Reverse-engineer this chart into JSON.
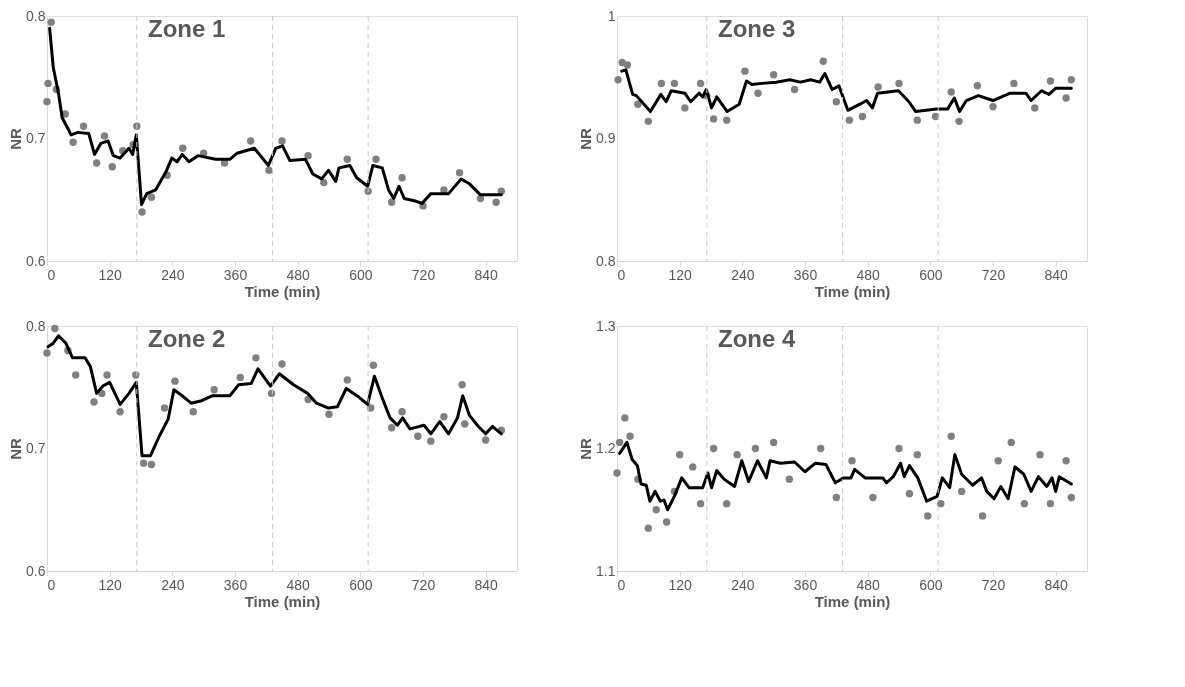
{
  "chart_data": [
    {
      "type": "line",
      "title": "Zone 1",
      "xlabel": "Time (min)",
      "ylabel": "NR",
      "xlim": [
        0,
        900
      ],
      "xticks": [
        0,
        120,
        240,
        360,
        480,
        600,
        720,
        840
      ],
      "ylim": [
        0.6,
        0.8
      ],
      "yticks": [
        0.6,
        0.7,
        0.8
      ],
      "grid": false,
      "ref_lines": [
        {
          "axis": "x",
          "value": 172,
          "color": "#c8c8c8",
          "line_style": "dashed"
        },
        {
          "axis": "x",
          "value": 432,
          "color": "#c8c8c8",
          "line_style": "dashed"
        },
        {
          "axis": "x",
          "value": 615,
          "color": "#c8c8c8",
          "line_style": "dashed"
        }
      ],
      "series": [
        {
          "type": "scatter",
          "color": "#808080",
          "x": [
            0,
            2,
            8,
            18,
            35,
            50,
            70,
            95,
            110,
            125,
            145,
            165,
            172,
            182,
            200,
            230,
            260,
            300,
            340,
            390,
            425,
            450,
            500,
            530,
            575,
            615,
            630,
            660,
            680,
            720,
            760,
            790,
            830,
            860,
            870
          ],
          "values": [
            0.73,
            0.745,
            0.795,
            0.74,
            0.72,
            0.697,
            0.71,
            0.68,
            0.702,
            0.677,
            0.69,
            0.695,
            0.71,
            0.64,
            0.652,
            0.67,
            0.692,
            0.688,
            0.68,
            0.698,
            0.674,
            0.698,
            0.686,
            0.664,
            0.683,
            0.657,
            0.683,
            0.648,
            0.668,
            0.645,
            0.658,
            0.672,
            0.651,
            0.648,
            0.657
          ]
        },
        {
          "color": "#000000",
          "x": [
            5,
            12,
            22,
            29,
            39,
            46,
            59,
            80,
            91,
            103,
            117,
            127,
            140,
            157,
            164,
            171,
            181,
            191,
            208,
            228,
            239,
            249,
            259,
            272,
            289,
            323,
            350,
            364,
            397,
            424,
            438,
            451,
            465,
            495,
            509,
            526,
            539,
            553,
            559,
            580,
            593,
            614,
            624,
            642,
            654,
            664,
            674,
            684,
            705,
            718,
            735,
            769,
            793,
            809,
            830,
            870
          ],
          "values": [
            0.79,
            0.758,
            0.737,
            0.717,
            0.709,
            0.703,
            0.705,
            0.704,
            0.687,
            0.696,
            0.698,
            0.686,
            0.684,
            0.692,
            0.687,
            0.703,
            0.646,
            0.655,
            0.658,
            0.673,
            0.684,
            0.681,
            0.687,
            0.681,
            0.686,
            0.683,
            0.683,
            0.688,
            0.692,
            0.678,
            0.692,
            0.694,
            0.682,
            0.683,
            0.671,
            0.667,
            0.674,
            0.665,
            0.676,
            0.678,
            0.668,
            0.661,
            0.678,
            0.676,
            0.658,
            0.651,
            0.661,
            0.651,
            0.649,
            0.647,
            0.655,
            0.655,
            0.667,
            0.663,
            0.654,
            0.654
          ]
        }
      ]
    },
    {
      "type": "line",
      "title": "Zone 3",
      "xlabel": "Time (min)",
      "ylabel": "NR",
      "xlim": [
        0,
        900
      ],
      "xticks": [
        0,
        120,
        240,
        360,
        480,
        600,
        720,
        840
      ],
      "ylim": [
        0.8,
        1
      ],
      "yticks": [
        0.8,
        0.9,
        1
      ],
      "grid": false,
      "ref_lines": [
        {
          "axis": "x",
          "value": 172,
          "color": "#c8c8c8",
          "line_style": "dashed"
        },
        {
          "axis": "x",
          "value": 432,
          "color": "#c8c8c8",
          "line_style": "dashed"
        },
        {
          "axis": "x",
          "value": 615,
          "color": "#c8c8c8",
          "line_style": "dashed"
        }
      ],
      "series": [
        {
          "type": "scatter",
          "color": "#808080",
          "x": [
            2,
            10,
            20,
            40,
            60,
            85,
            110,
            130,
            160,
            172,
            185,
            210,
            245,
            270,
            300,
            340,
            395,
            420,
            445,
            470,
            500,
            540,
            575,
            610,
            640,
            655,
            690,
            720,
            760,
            800,
            830,
            860,
            870
          ],
          "values": [
            0.948,
            0.962,
            0.96,
            0.928,
            0.914,
            0.945,
            0.945,
            0.925,
            0.945,
            0.935,
            0.916,
            0.915,
            0.955,
            0.937,
            0.952,
            0.94,
            0.963,
            0.93,
            0.915,
            0.918,
            0.942,
            0.945,
            0.915,
            0.918,
            0.938,
            0.914,
            0.943,
            0.926,
            0.945,
            0.925,
            0.947,
            0.933,
            0.948
          ]
        },
        {
          "color": "#000000",
          "x": [
            9,
            17,
            30,
            37,
            64,
            84,
            94,
            104,
            130,
            141,
            157,
            164,
            171,
            181,
            191,
            211,
            234,
            248,
            258,
            278,
            305,
            331,
            351,
            371,
            388,
            398,
            412,
            425,
            442,
            465,
            478,
            489,
            499,
            539,
            559,
            572,
            612,
            633,
            646,
            656,
            669,
            692,
            720,
            753,
            783,
            793,
            813,
            827,
            840,
            870
          ],
          "values": [
            0.955,
            0.956,
            0.936,
            0.935,
            0.922,
            0.936,
            0.93,
            0.939,
            0.937,
            0.93,
            0.937,
            0.934,
            0.94,
            0.925,
            0.934,
            0.922,
            0.928,
            0.947,
            0.944,
            0.945,
            0.946,
            0.948,
            0.946,
            0.948,
            0.946,
            0.953,
            0.94,
            0.943,
            0.923,
            0.928,
            0.931,
            0.925,
            0.937,
            0.939,
            0.93,
            0.922,
            0.924,
            0.924,
            0.933,
            0.922,
            0.931,
            0.935,
            0.931,
            0.937,
            0.937,
            0.931,
            0.939,
            0.936,
            0.941,
            0.941
          ]
        }
      ]
    },
    {
      "type": "line",
      "title": "Zone 2",
      "xlabel": "Time (min)",
      "ylabel": "NR",
      "xlim": [
        0,
        900
      ],
      "xticks": [
        0,
        120,
        240,
        360,
        480,
        600,
        720,
        840
      ],
      "ylim": [
        0.6,
        0.8
      ],
      "yticks": [
        0.6,
        0.7,
        0.8
      ],
      "grid": false,
      "ref_lines": [
        {
          "axis": "x",
          "value": 172,
          "color": "#c8c8c8",
          "line_style": "dashed"
        },
        {
          "axis": "x",
          "value": 432,
          "color": "#c8c8c8",
          "line_style": "dashed"
        },
        {
          "axis": "x",
          "value": 615,
          "color": "#c8c8c8",
          "line_style": "dashed"
        }
      ],
      "series": [
        {
          "type": "scatter",
          "color": "#808080",
          "x": [
            0,
            15,
            40,
            55,
            90,
            105,
            115,
            140,
            170,
            185,
            200,
            225,
            245,
            280,
            320,
            370,
            400,
            430,
            450,
            500,
            540,
            575,
            620,
            625,
            660,
            680,
            710,
            735,
            760,
            795,
            800,
            840,
            870
          ],
          "values": [
            0.778,
            0.798,
            0.78,
            0.76,
            0.738,
            0.745,
            0.76,
            0.73,
            0.76,
            0.688,
            0.687,
            0.733,
            0.755,
            0.73,
            0.748,
            0.758,
            0.774,
            0.745,
            0.769,
            0.74,
            0.728,
            0.756,
            0.733,
            0.768,
            0.717,
            0.73,
            0.71,
            0.706,
            0.726,
            0.752,
            0.72,
            0.707,
            0.715
          ]
        },
        {
          "color": "#000000",
          "x": [
            2,
            12,
            22,
            36,
            49,
            73,
            83,
            95,
            107,
            120,
            140,
            157,
            171,
            182,
            198,
            215,
            232,
            243,
            259,
            276,
            296,
            316,
            350,
            367,
            391,
            404,
            428,
            445,
            472,
            499,
            516,
            539,
            556,
            573,
            597,
            614,
            627,
            643,
            657,
            671,
            681,
            695,
            722,
            735,
            752,
            769,
            786,
            796,
            809,
            826,
            840,
            853,
            870
          ],
          "values": [
            0.783,
            0.786,
            0.792,
            0.786,
            0.774,
            0.774,
            0.767,
            0.745,
            0.751,
            0.754,
            0.736,
            0.745,
            0.754,
            0.694,
            0.694,
            0.71,
            0.724,
            0.748,
            0.743,
            0.737,
            0.739,
            0.743,
            0.743,
            0.752,
            0.753,
            0.765,
            0.751,
            0.761,
            0.752,
            0.745,
            0.737,
            0.733,
            0.734,
            0.749,
            0.742,
            0.736,
            0.759,
            0.74,
            0.725,
            0.719,
            0.725,
            0.716,
            0.719,
            0.712,
            0.722,
            0.712,
            0.725,
            0.743,
            0.727,
            0.718,
            0.712,
            0.718,
            0.712
          ]
        }
      ]
    },
    {
      "type": "line",
      "title": "Zone 4",
      "xlabel": "Time (min)",
      "ylabel": "NR",
      "xlim": [
        0,
        900
      ],
      "xticks": [
        0,
        120,
        240,
        360,
        480,
        600,
        720,
        840
      ],
      "ylim": [
        1.1,
        1.3
      ],
      "yticks": [
        1.1,
        1.2,
        1.3
      ],
      "grid": false,
      "ref_lines": [
        {
          "axis": "x",
          "value": 172,
          "color": "#c8c8c8",
          "line_style": "dashed"
        },
        {
          "axis": "x",
          "value": 432,
          "color": "#c8c8c8",
          "line_style": "dashed"
        },
        {
          "axis": "x",
          "value": 615,
          "color": "#c8c8c8",
          "line_style": "dashed"
        }
      ],
      "series": [
        {
          "type": "scatter",
          "color": "#808080",
          "x": [
            0,
            5,
            15,
            25,
            40,
            60,
            75,
            95,
            110,
            120,
            145,
            160,
            185,
            210,
            230,
            265,
            300,
            330,
            390,
            420,
            450,
            490,
            540,
            560,
            575,
            595,
            620,
            640,
            660,
            700,
            730,
            755,
            780,
            810,
            830,
            860,
            870
          ],
          "values": [
            1.18,
            1.205,
            1.225,
            1.21,
            1.175,
            1.135,
            1.15,
            1.14,
            1.165,
            1.195,
            1.185,
            1.155,
            1.2,
            1.155,
            1.195,
            1.2,
            1.205,
            1.175,
            1.2,
            1.16,
            1.19,
            1.16,
            1.2,
            1.163,
            1.195,
            1.145,
            1.155,
            1.21,
            1.165,
            1.145,
            1.19,
            1.205,
            1.155,
            1.195,
            1.155,
            1.19,
            1.16
          ]
        },
        {
          "color": "#000000",
          "x": [
            5,
            19,
            29,
            39,
            46,
            56,
            63,
            73,
            83,
            90,
            97,
            111,
            124,
            138,
            164,
            174,
            181,
            191,
            205,
            225,
            239,
            252,
            269,
            286,
            293,
            313,
            340,
            360,
            380,
            400,
            418,
            434,
            448,
            455,
            475,
            509,
            516,
            529,
            543,
            550,
            560,
            576,
            593,
            613,
            623,
            637,
            647,
            660,
            681,
            698,
            708,
            722,
            735,
            749,
            762,
            779,
            793,
            807,
            823,
            833,
            840,
            847,
            870
          ],
          "values": [
            1.196,
            1.205,
            1.191,
            1.186,
            1.171,
            1.17,
            1.157,
            1.165,
            1.157,
            1.158,
            1.15,
            1.162,
            1.176,
            1.168,
            1.168,
            1.18,
            1.168,
            1.182,
            1.175,
            1.169,
            1.19,
            1.173,
            1.19,
            1.176,
            1.19,
            1.188,
            1.189,
            1.181,
            1.188,
            1.187,
            1.172,
            1.176,
            1.176,
            1.183,
            1.176,
            1.176,
            1.172,
            1.177,
            1.188,
            1.177,
            1.186,
            1.176,
            1.157,
            1.161,
            1.176,
            1.168,
            1.195,
            1.179,
            1.17,
            1.176,
            1.165,
            1.159,
            1.169,
            1.159,
            1.185,
            1.179,
            1.165,
            1.177,
            1.169,
            1.176,
            1.165,
            1.177,
            1.171
          ]
        }
      ]
    }
  ]
}
